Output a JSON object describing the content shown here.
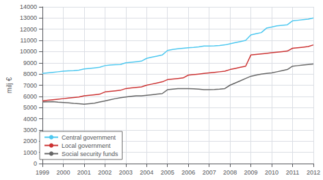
{
  "chart_data": {
    "type": "line",
    "ylabel": "milj €",
    "x": [
      1999,
      1999.25,
      1999.5,
      1999.75,
      2000,
      2000.25,
      2000.5,
      2000.75,
      2001,
      2001.25,
      2001.5,
      2001.75,
      2002,
      2002.25,
      2002.5,
      2002.75,
      2003,
      2003.25,
      2003.5,
      2003.75,
      2004,
      2004.25,
      2004.5,
      2004.75,
      2005,
      2005.25,
      2005.5,
      2005.75,
      2006,
      2006.25,
      2006.5,
      2006.75,
      2007,
      2007.25,
      2007.5,
      2007.75,
      2008,
      2008.25,
      2008.5,
      2008.75,
      2009,
      2009.25,
      2009.5,
      2009.75,
      2010,
      2010.25,
      2010.5,
      2010.75,
      2011,
      2011.25,
      2011.5,
      2011.75,
      2012
    ],
    "series": [
      {
        "name": "Central government",
        "color": "#4dc8f0",
        "values": [
          8050,
          8100,
          8150,
          8200,
          8250,
          8280,
          8300,
          8350,
          8450,
          8500,
          8550,
          8600,
          8750,
          8800,
          8830,
          8850,
          9000,
          9050,
          9100,
          9150,
          9400,
          9500,
          9600,
          9700,
          10100,
          10200,
          10250,
          10300,
          10350,
          10380,
          10420,
          10500,
          10500,
          10520,
          10550,
          10600,
          10700,
          10800,
          10900,
          11000,
          11500,
          11600,
          11700,
          12100,
          12200,
          12300,
          12350,
          12400,
          12750,
          12800,
          12850,
          12900,
          13000
        ]
      },
      {
        "name": "Local government",
        "color": "#cc3333",
        "values": [
          5600,
          5650,
          5700,
          5750,
          5800,
          5850,
          5900,
          5950,
          6050,
          6100,
          6150,
          6200,
          6400,
          6450,
          6500,
          6550,
          6700,
          6750,
          6800,
          6850,
          7000,
          7100,
          7200,
          7300,
          7500,
          7550,
          7600,
          7650,
          7900,
          7950,
          8000,
          8050,
          8100,
          8150,
          8200,
          8250,
          8400,
          8500,
          8600,
          8700,
          9700,
          9750,
          9800,
          9850,
          9900,
          9950,
          10000,
          10050,
          10300,
          10350,
          10400,
          10450,
          10600
        ]
      },
      {
        "name": "Social security funds",
        "color": "#666666",
        "values": [
          5500,
          5520,
          5540,
          5480,
          5450,
          5420,
          5380,
          5350,
          5300,
          5350,
          5400,
          5500,
          5600,
          5700,
          5800,
          5880,
          5950,
          6000,
          6050,
          6050,
          6100,
          6150,
          6200,
          6250,
          6600,
          6650,
          6700,
          6700,
          6700,
          6680,
          6650,
          6600,
          6600,
          6620,
          6650,
          6700,
          7000,
          7200,
          7400,
          7600,
          7800,
          7900,
          8000,
          8050,
          8100,
          8200,
          8300,
          8400,
          8700,
          8750,
          8800,
          8850,
          8900
        ]
      }
    ],
    "xlim": [
      1999,
      2012
    ],
    "xticks": [
      1999,
      2000,
      2001,
      2002,
      2003,
      2004,
      2005,
      2006,
      2007,
      2008,
      2009,
      2010,
      2011,
      2012
    ],
    "ylim": [
      0,
      14000
    ],
    "yticks": [
      0,
      1000,
      2000,
      3000,
      4000,
      5000,
      6000,
      7000,
      8000,
      9000,
      10000,
      11000,
      12000,
      13000,
      14000
    ],
    "grid": true,
    "legend": "lower left"
  }
}
